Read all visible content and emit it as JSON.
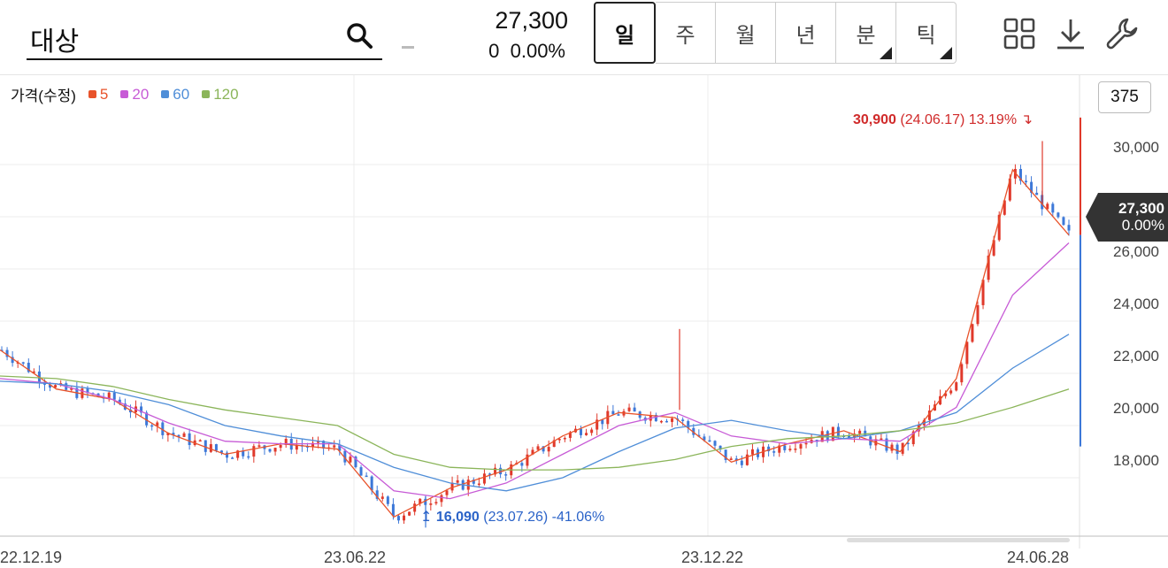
{
  "search": {
    "value": "대상"
  },
  "quote": {
    "price": "27,300",
    "change": "0",
    "change_pct": "0.00%"
  },
  "periods": [
    {
      "label": "일",
      "has_menu": false
    },
    {
      "label": "주",
      "has_menu": false
    },
    {
      "label": "월",
      "has_menu": false
    },
    {
      "label": "년",
      "has_menu": false
    },
    {
      "label": "분",
      "has_menu": true
    },
    {
      "label": "틱",
      "has_menu": true
    }
  ],
  "tools": [
    "layout-grid-icon",
    "download-icon",
    "wrench-icon"
  ],
  "candle_count": "375",
  "current_tag": {
    "price": "27,300",
    "pct": "0.00%"
  },
  "annotations": {
    "high": {
      "value": "30,900",
      "detail": "(24.06.17) 13.19%"
    },
    "low": {
      "value": "16,090",
      "detail": "(23.07.26) -41.06%"
    }
  },
  "colors": {
    "up": "#e0392b",
    "down": "#3d78d8",
    "ma5": "#e8532b",
    "ma20": "#c75bd6",
    "ma60": "#4f8ed8",
    "ma120": "#8bb55a"
  },
  "chart_data": {
    "type": "line",
    "legend": [
      {
        "label": "가격(수정)"
      },
      {
        "label": "5",
        "color": "#e8532b"
      },
      {
        "label": "20",
        "color": "#c75bd6"
      },
      {
        "label": "60",
        "color": "#4f8ed8"
      },
      {
        "label": "120",
        "color": "#8bb55a"
      }
    ],
    "x_ticks": [
      "22.12.19",
      "23.06.22",
      "23.12.22",
      "24.06.28"
    ],
    "y_ticks": [
      "18,000",
      "20,000",
      "22,000",
      "24,000",
      "26,000",
      "28,000",
      "30,000"
    ],
    "ylim": [
      16000,
      31800
    ],
    "series": [
      {
        "name": "5",
        "color": "#e8532b",
        "x": [
          "22.12.19",
          "23.01.19",
          "23.02.19",
          "23.03.19",
          "23.04.19",
          "23.05.19",
          "23.06.22",
          "23.07.26",
          "23.08.19",
          "23.09.19",
          "23.10.19",
          "23.11.19",
          "23.12.22",
          "24.01.19",
          "24.02.19",
          "24.03.19",
          "24.04.19",
          "24.05.19",
          "24.06.17",
          "24.06.28"
        ],
        "values": [
          22900,
          21400,
          21000,
          19700,
          18900,
          19300,
          19100,
          16500,
          17600,
          18300,
          19600,
          20500,
          20300,
          18600,
          19300,
          19800,
          19000,
          21800,
          29800,
          27300
        ]
      },
      {
        "name": "20",
        "color": "#c75bd6",
        "x": [
          "22.12.19",
          "23.01.19",
          "23.02.19",
          "23.03.19",
          "23.04.19",
          "23.05.19",
          "23.06.22",
          "23.07.26",
          "23.08.19",
          "23.09.19",
          "23.10.19",
          "23.11.19",
          "23.12.22",
          "24.01.19",
          "24.02.19",
          "24.03.19",
          "24.04.19",
          "24.05.19",
          "24.06.17",
          "24.06.28"
        ],
        "values": [
          21800,
          21600,
          21000,
          20100,
          19400,
          19300,
          19300,
          17500,
          17200,
          17800,
          18900,
          20000,
          20500,
          19600,
          19300,
          19500,
          19400,
          20700,
          25000,
          27000
        ]
      },
      {
        "name": "60",
        "color": "#4f8ed8",
        "x": [
          "22.12.19",
          "23.01.19",
          "23.02.19",
          "23.03.19",
          "23.04.19",
          "23.05.19",
          "23.06.22",
          "23.07.26",
          "23.08.19",
          "23.09.19",
          "23.10.19",
          "23.11.19",
          "23.12.22",
          "24.01.19",
          "24.02.19",
          "24.03.19",
          "24.04.19",
          "24.05.19",
          "24.06.17",
          "24.06.28"
        ],
        "values": [
          21700,
          21600,
          21300,
          20800,
          20000,
          19600,
          19300,
          18400,
          17800,
          17500,
          18000,
          19000,
          19900,
          20200,
          19800,
          19500,
          19800,
          20500,
          22200,
          23500
        ]
      },
      {
        "name": "120",
        "color": "#8bb55a",
        "x": [
          "22.12.19",
          "23.01.19",
          "23.02.19",
          "23.03.19",
          "23.04.19",
          "23.05.19",
          "23.06.22",
          "23.07.26",
          "23.08.19",
          "23.09.19",
          "23.10.19",
          "23.11.19",
          "23.12.22",
          "24.01.19",
          "24.02.19",
          "24.03.19",
          "24.04.19",
          "24.05.19",
          "24.06.17",
          "24.06.28"
        ],
        "values": [
          21900,
          21800,
          21500,
          21000,
          20600,
          20300,
          20000,
          18900,
          18400,
          18300,
          18300,
          18400,
          18700,
          19200,
          19500,
          19600,
          19800,
          20100,
          20700,
          21400
        ]
      }
    ],
    "high": {
      "date": "24.06.17",
      "value": 30900,
      "pct": "13.19%"
    },
    "low": {
      "date": "23.07.26",
      "value": 16090,
      "pct": "-41.06%"
    },
    "last": 27300
  }
}
